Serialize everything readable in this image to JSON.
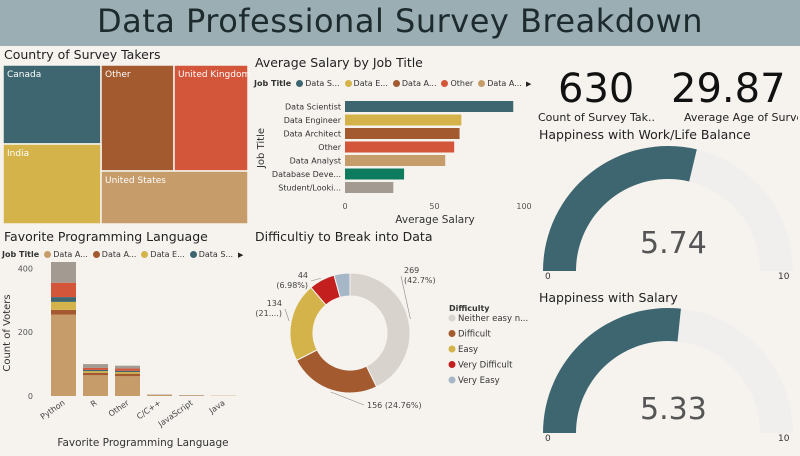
{
  "header": {
    "title": "Data Professional Survey Breakdown"
  },
  "kpis": [
    {
      "value": "630",
      "label": "Count of Survey Tak..."
    },
    {
      "value": "29.87",
      "label": "Average Age of Survey Ta..."
    }
  ],
  "panels": {
    "treemap_title": "Country of Survey Takers",
    "salary_title": "Average Salary by Job Title",
    "language_title": "Favorite Programming Language",
    "difficulty_title": "Difficultiy to Break into Data",
    "worklife_title": "Happiness with Work/Life Balance",
    "happysalary_title": "Happiness with Salary"
  },
  "colors": {
    "teal": "#3d6670",
    "gold": "#d4b44a",
    "brown": "#a35a2e",
    "orange": "#d3553a",
    "tan": "#c79c6b",
    "green": "#0e7a5e",
    "gray": "#a39a92",
    "lightgray": "#d8d3cd",
    "red": "#c41f1f",
    "lightblue": "#a6b8c7"
  },
  "chart_data": [
    {
      "type": "treemap",
      "title": "Country of Survey Takers",
      "categories": [
        "Canada",
        "Other",
        "United Kingdom",
        "India",
        "United States"
      ],
      "colors": [
        "#3d6670",
        "#a35a2e",
        "#d3553a",
        "#d4b44a",
        "#c79c6b"
      ]
    },
    {
      "type": "bar",
      "orientation": "horizontal",
      "title": "Average Salary by Job Title",
      "legend_title": "Job Title",
      "legend_entries": [
        "Data S...",
        "Data E...",
        "Data A...",
        "Other",
        "Data A..."
      ],
      "legend_colors": [
        "#3d6670",
        "#d4b44a",
        "#a35a2e",
        "#d3553a",
        "#c79c6b"
      ],
      "categories": [
        "Data Scientist",
        "Data Engineer",
        "Data Architect",
        "Other",
        "Data Analyst",
        "Database Deve...",
        "Student/Looki..."
      ],
      "values": [
        94,
        65,
        64,
        61,
        56,
        33,
        27
      ],
      "bar_colors": [
        "#3d6670",
        "#d4b44a",
        "#a35a2e",
        "#d3553a",
        "#c79c6b",
        "#0e7a5e",
        "#a39a92"
      ],
      "xlabel": "Average Salary",
      "ylabel": "Job Title",
      "xlim": [
        0,
        100
      ],
      "xticks": [
        "0",
        "50",
        "100"
      ],
      "grid": false
    },
    {
      "type": "bar",
      "stacked": true,
      "title": "Favorite Programming Language",
      "legend_title": "Job Title",
      "legend_entries": [
        "Data A...",
        "Data A...",
        "Data E...",
        "Data S..."
      ],
      "legend_colors": [
        "#c79c6b",
        "#a35a2e",
        "#d4b44a",
        "#3d6670"
      ],
      "categories": [
        "Python",
        "R",
        "Other",
        "C/C++",
        "JavaScript",
        "Java"
      ],
      "series": [
        {
          "name": "Data A...",
          "color": "#c79c6b",
          "values": [
            255,
            65,
            62,
            4,
            2,
            1
          ]
        },
        {
          "name": "Data A...",
          "color": "#a35a2e",
          "values": [
            15,
            8,
            8,
            0,
            0,
            0
          ]
        },
        {
          "name": "Data E...",
          "color": "#d4b44a",
          "values": [
            25,
            5,
            5,
            0,
            0,
            0
          ]
        },
        {
          "name": "Data S...",
          "color": "#3d6670",
          "values": [
            15,
            4,
            4,
            0,
            0,
            0
          ]
        },
        {
          "name": "",
          "color": "#d3553a",
          "values": [
            45,
            6,
            7,
            0,
            0,
            0
          ]
        },
        {
          "name": "",
          "color": "#a39a92",
          "values": [
            65,
            12,
            9,
            1,
            1,
            0
          ]
        }
      ],
      "xlabel": "Favorite Programming Language",
      "ylabel": "Count of Voters",
      "ylim": [
        0,
        420
      ],
      "yticks": [
        "0",
        "200",
        "400"
      ],
      "grid": false
    },
    {
      "type": "pie",
      "donut": true,
      "title": "Difficultiy to Break into Data",
      "legend_title": "Difficulty",
      "categories": [
        "Neither easy n...",
        "Difficult",
        "Easy",
        "Very Difficult",
        "Very Easy"
      ],
      "values": [
        269,
        156,
        134,
        44,
        27
      ],
      "colors": [
        "#d8d3cd",
        "#a35a2e",
        "#d4b44a",
        "#c41f1f",
        "#a6b8c7"
      ],
      "data_labels": [
        [
          "269",
          "(42.7%)"
        ],
        [
          "156 (24.76%)"
        ],
        [
          "134",
          "(21....)"
        ],
        [
          "44",
          "(6.98%)"
        ]
      ]
    },
    {
      "type": "gauge",
      "title": "Happiness with Work/Life Balance",
      "value": 5.74,
      "value_label": "5.74",
      "min": 0,
      "max": 10,
      "min_label": "0",
      "max_label": "10",
      "fill_color": "#3d6670",
      "track_color": "#f1efed"
    },
    {
      "type": "gauge",
      "title": "Happiness with Salary",
      "value": 5.33,
      "value_label": "5.33",
      "min": 0,
      "max": 10,
      "min_label": "0",
      "max_label": "10",
      "fill_color": "#3d6670",
      "track_color": "#f1efed"
    }
  ]
}
